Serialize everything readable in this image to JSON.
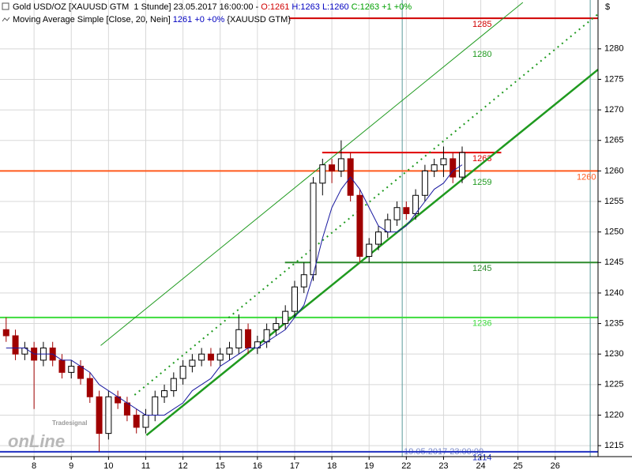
{
  "chart_data": {
    "type": "candlestick",
    "header": [
      {
        "text": "Gold USD/OZ [XAUUSD GTM  1 Stunde] 23.05.2017 16:00:00 - ",
        "color": "#000000"
      },
      {
        "text": "O:1261",
        "color": "#d00000"
      },
      {
        "text": " H:1263 L:1260 ",
        "color": "#0000c0"
      },
      {
        "text": "C:1263 +1 +0%",
        "color": "#00a000"
      }
    ],
    "subheader": [
      {
        "text": "Moving Average Simple [Close, 20, Nein] ",
        "color": "#000000"
      },
      {
        "text": "1261 +0 +0%",
        "color": "#0000c0"
      },
      {
        "text": " {XAUUSD GTM}",
        "color": "#000000"
      }
    ],
    "currency": "$",
    "logo": {
      "brand": "Tradesignal",
      "word": "onLine"
    },
    "ylim": [
      1213.2,
      1288.0
    ],
    "yticks": [
      1215,
      1220,
      1225,
      1230,
      1235,
      1240,
      1245,
      1250,
      1255,
      1260,
      1265,
      1270,
      1275,
      1280
    ],
    "xlim": [
      -0.915,
      15.15
    ],
    "xticks": [
      {
        "value": 0,
        "label": "8"
      },
      {
        "value": 1,
        "label": "9"
      },
      {
        "value": 2,
        "label": "10"
      },
      {
        "value": 3,
        "label": "11"
      },
      {
        "value": 4,
        "label": "12"
      },
      {
        "value": 5,
        "label": "15"
      },
      {
        "value": 6,
        "label": "16"
      },
      {
        "value": 7,
        "label": "17"
      },
      {
        "value": 8,
        "label": "18"
      },
      {
        "value": 9,
        "label": "19"
      },
      {
        "value": 10,
        "label": "22"
      },
      {
        "value": 11,
        "label": "23"
      },
      {
        "value": 12,
        "label": "24"
      },
      {
        "value": 13,
        "label": "25"
      },
      {
        "value": 14,
        "label": "26"
      }
    ],
    "grid": true,
    "up_color": "#000000",
    "down_color": "#a00000",
    "x": [
      -0.75,
      -0.5,
      -0.25,
      0,
      0.25,
      0.5,
      0.75,
      1,
      1.25,
      1.5,
      1.75,
      2,
      2.25,
      2.5,
      2.75,
      3,
      3.25,
      3.5,
      3.75,
      4,
      4.25,
      4.5,
      4.75,
      5,
      5.25,
      5.5,
      5.75,
      6,
      6.25,
      6.5,
      6.75,
      7,
      7.25,
      7.5,
      7.75,
      8,
      8.25,
      8.5,
      8.75,
      9,
      9.25,
      9.5,
      9.75,
      10,
      10.25,
      10.5,
      10.75,
      11,
      11.25,
      11.5
    ],
    "open": [
      1234,
      1233,
      1230,
      1231,
      1229,
      1231,
      1229,
      1227,
      1228,
      1226,
      1223,
      1217,
      1223,
      1222,
      1220,
      1218,
      1220,
      1223,
      1224,
      1226,
      1228,
      1229,
      1230,
      1229,
      1230,
      1231,
      1234,
      1231,
      1232,
      1234,
      1235,
      1237,
      1241,
      1243,
      1258,
      1261,
      1260,
      1262,
      1256,
      1246,
      1248,
      1250,
      1252,
      1254,
      1253,
      1256,
      1260,
      1261,
      1262,
      1259
    ],
    "high": [
      1236,
      1234,
      1232,
      1232,
      1232,
      1232,
      1230,
      1229,
      1229,
      1227,
      1224,
      1224,
      1224,
      1223,
      1221,
      1221,
      1224,
      1225,
      1227,
      1229,
      1230,
      1231,
      1231,
      1231,
      1232,
      1236.5,
      1235,
      1233,
      1235,
      1236,
      1238,
      1242,
      1245,
      1259,
      1262,
      1262,
      1265,
      1263,
      1257,
      1249,
      1251,
      1253,
      1255,
      1255,
      1257,
      1261,
      1262,
      1264,
      1263,
      1264
    ],
    "low": [
      1232,
      1229,
      1229,
      1221,
      1228,
      1228,
      1226,
      1226,
      1225,
      1222,
      1214,
      1216,
      1221,
      1219,
      1217,
      1217,
      1219,
      1222,
      1223,
      1225,
      1227,
      1228,
      1228,
      1228,
      1229,
      1230,
      1230,
      1230,
      1231,
      1233,
      1234,
      1236,
      1240,
      1242,
      1256,
      1258,
      1259,
      1255,
      1245,
      1245,
      1247,
      1249,
      1251,
      1252,
      1252,
      1255,
      1259,
      1259,
      1258,
      1258
    ],
    "close": [
      1233,
      1230,
      1231,
      1229,
      1231,
      1229,
      1227,
      1228,
      1226,
      1223,
      1217,
      1223,
      1222,
      1220,
      1218,
      1220,
      1223,
      1224,
      1226,
      1228,
      1229,
      1230,
      1229,
      1230,
      1231,
      1234,
      1231,
      1232,
      1234,
      1235,
      1237,
      1241,
      1243,
      1258,
      1261,
      1260,
      1262,
      1256,
      1246,
      1248,
      1250,
      1252,
      1254,
      1253,
      1256,
      1260,
      1261,
      1262,
      1259,
      1263
    ],
    "ma": {
      "color": "#1a1aa0",
      "values": [
        1231,
        1231,
        1231,
        1230,
        1230,
        1230,
        1229,
        1229,
        1228,
        1227,
        1225,
        1224,
        1223,
        1222,
        1221,
        1220,
        1220,
        1220,
        1221,
        1222,
        1224,
        1225,
        1226,
        1228,
        1229,
        1230,
        1231,
        1231,
        1232,
        1233,
        1234,
        1236,
        1238,
        1243,
        1249,
        1254,
        1257,
        1259,
        1257,
        1254,
        1251,
        1250,
        1250,
        1251,
        1253,
        1255,
        1257,
        1258,
        1260,
        1261
      ]
    },
    "hlines": [
      {
        "value": 1285,
        "from": 6.85,
        "color": "#d00000"
      },
      {
        "value": 1263,
        "from": 7.74,
        "to": 12.55,
        "color": "#e00000"
      },
      {
        "value": 1260,
        "color": "#ff5a1e"
      },
      {
        "value": 1245,
        "from": 6.74,
        "color": "#2e8b2e"
      },
      {
        "value": 1236,
        "color": "#3ddc3d"
      },
      {
        "value": 1214,
        "color": "#2030c0"
      }
    ],
    "trendlines": [
      {
        "x": [
          3.02,
          15.15
        ],
        "y": [
          1216.7,
          1276.6
        ],
        "color": "#1f9a1f",
        "label": "1259"
      },
      {
        "x": [
          2.7,
          15.15
        ],
        "y": [
          1223.3,
          1285.7
        ],
        "color": "#1f9a1f"
      },
      {
        "x": [
          1.79,
          13.13
        ],
        "y": [
          1231.4,
          1287.6
        ],
        "color": "#1f9a1f",
        "label": "1280"
      }
    ],
    "cursor": {
      "x": 9.89,
      "label": "19.05.2017 23:00:00",
      "color": "#5a9a9a"
    },
    "end_line": {
      "x": 14.94,
      "color": "#5a9a9a"
    }
  }
}
